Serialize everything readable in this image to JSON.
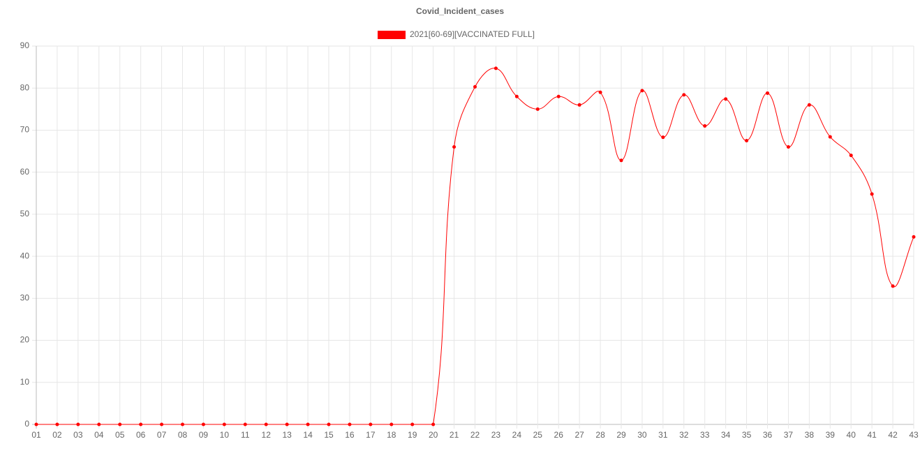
{
  "chart_data": {
    "type": "line",
    "title": "Covid_Incident_cases",
    "categories": [
      "01",
      "02",
      "03",
      "04",
      "05",
      "06",
      "07",
      "08",
      "09",
      "10",
      "11",
      "12",
      "13",
      "14",
      "15",
      "16",
      "17",
      "18",
      "19",
      "20",
      "21",
      "22",
      "23",
      "24",
      "25",
      "26",
      "27",
      "28",
      "29",
      "30",
      "31",
      "32",
      "33",
      "34",
      "35",
      "36",
      "37",
      "38",
      "39",
      "40",
      "41",
      "42",
      "43"
    ],
    "series": [
      {
        "name": "2021[60-69][VACCINATED FULL]",
        "color": "#ff0000",
        "values": [
          0,
          0,
          0,
          0,
          0,
          0,
          0,
          0,
          0,
          0,
          0,
          0,
          0,
          0,
          0,
          0,
          0,
          0,
          0,
          0,
          66,
          80.3,
          84.7,
          78,
          75,
          78,
          76,
          79,
          62.8,
          79.4,
          68.3,
          78.4,
          71,
          77.4,
          67.5,
          78.8,
          66,
          76,
          68.4,
          64,
          54.8,
          32.9,
          44.6
        ]
      }
    ],
    "ylim": [
      0,
      90
    ],
    "yticks": [
      0,
      10,
      20,
      30,
      40,
      50,
      60,
      70,
      80,
      90
    ],
    "grid": true,
    "legend": "top"
  }
}
